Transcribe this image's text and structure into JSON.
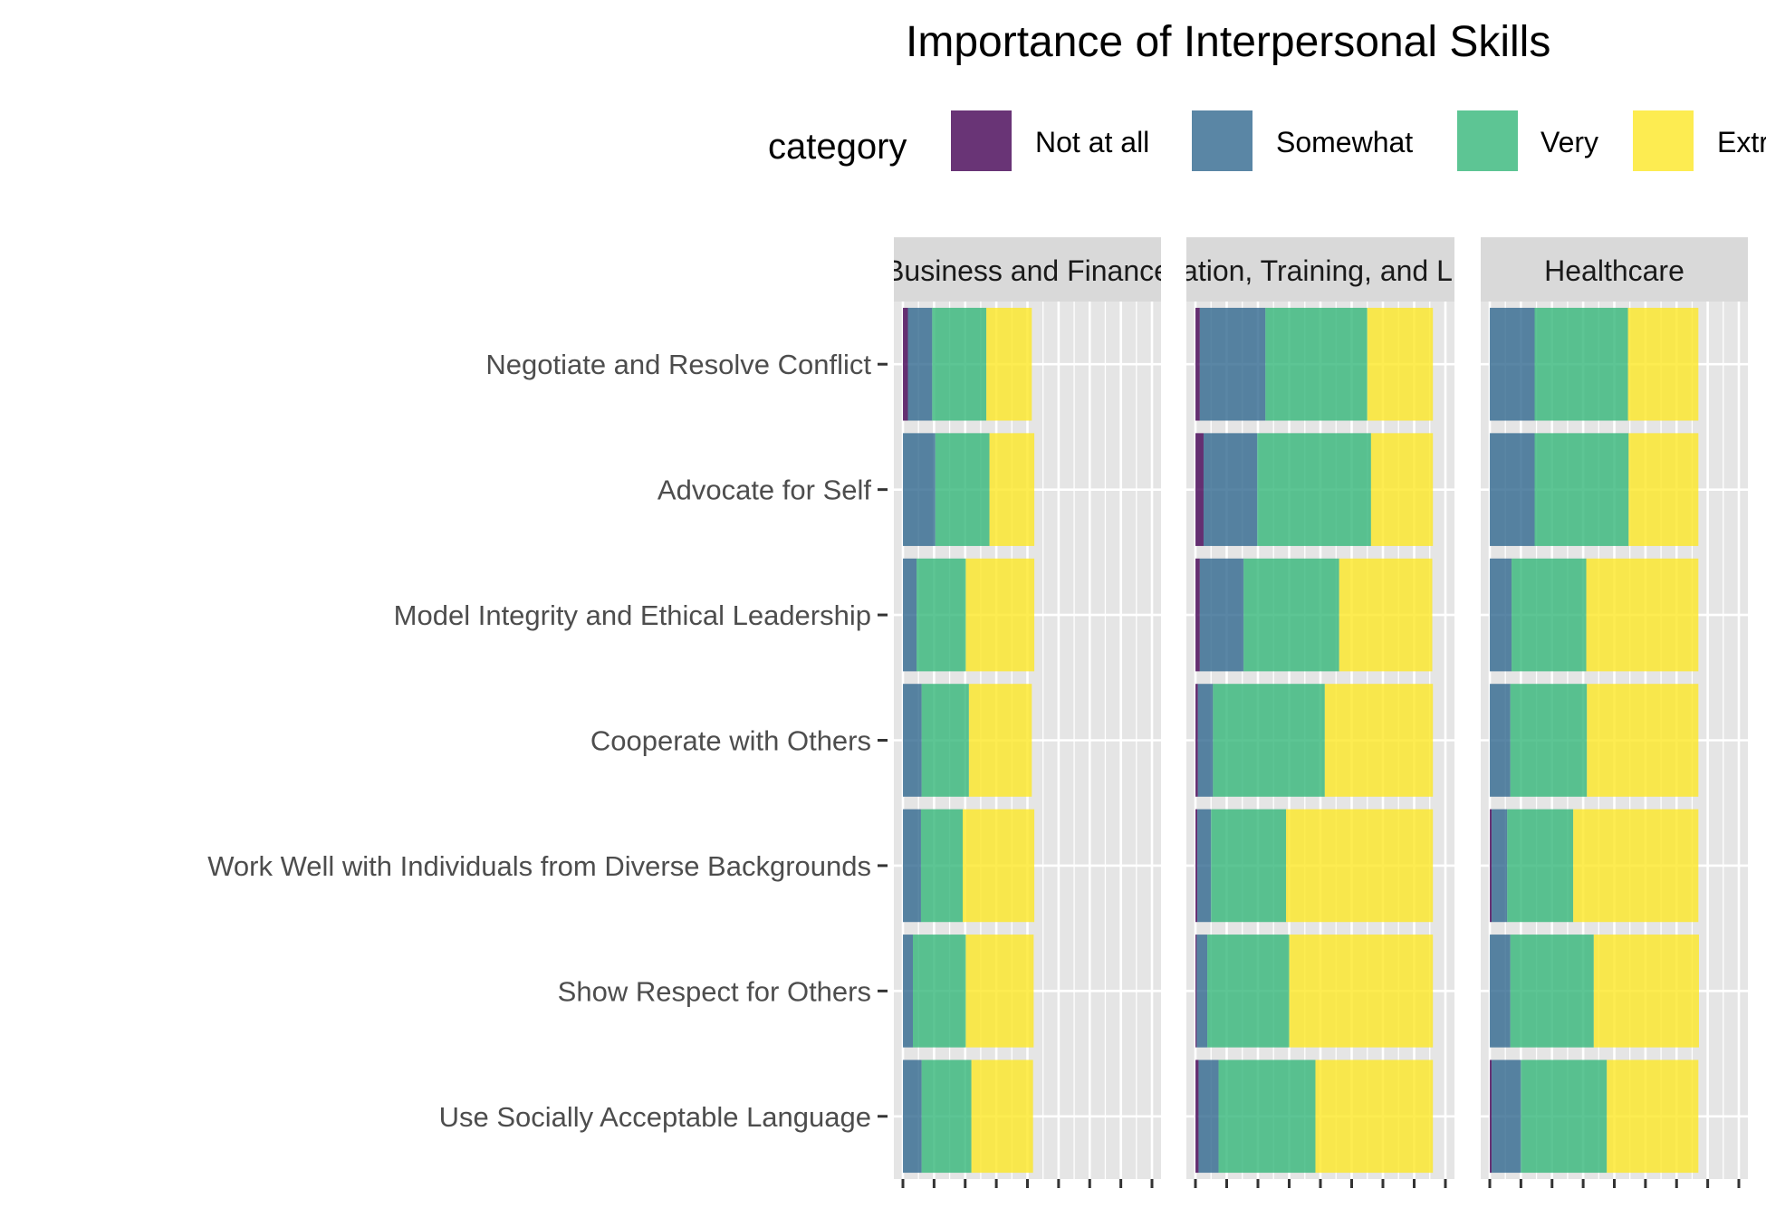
{
  "chart_data": {
    "type": "bar",
    "orientation": "horizontal",
    "stacked": true,
    "title": "Importance of Interpersonal Skills",
    "legend": {
      "title": "category",
      "position": "top",
      "entries": [
        "Not at all",
        "Somewhat",
        "Very",
        "Extremely"
      ]
    },
    "colors": {
      "Not at all": "#440154",
      "Somewhat": "#31688e",
      "Very": "#35b779",
      "Extremely": "#fde725",
      "panel_background": "#e5e5e5",
      "grid": "#ffffff",
      "strip_background": "#d9d9d9",
      "axis_text": "#4d4d4d"
    },
    "categories": [
      "Negotiate and Resolve Conflict",
      "Advocate for Self",
      "Model Integrity and Ethical Leadership",
      "Cooperate with Others",
      "Work Well with Individuals from Diverse Backgrounds",
      "Show Respect for Others",
      "Use Socially Acceptable Language"
    ],
    "series_order": [
      "Not at all",
      "Somewhat",
      "Very",
      "Extremely"
    ],
    "panels": [
      {
        "name": "Business and Finance",
        "xlim": [
          0,
          40
        ],
        "series": [
          {
            "name": "Not at all",
            "values": [
              0.8,
              0,
              0,
              0,
              0,
              0,
              0
            ]
          },
          {
            "name": "Somewhat",
            "values": [
              3.9,
              5.2,
              2.2,
              3.0,
              2.9,
              1.6,
              3.0
            ]
          },
          {
            "name": "Very",
            "values": [
              8.7,
              8.7,
              7.9,
              7.6,
              6.7,
              8.5,
              8.0
            ]
          },
          {
            "name": "Extremely",
            "values": [
              7.3,
              7.2,
              11.0,
              10.1,
              11.5,
              10.9,
              9.9
            ]
          }
        ]
      },
      {
        "name": "Education, Training, and Library",
        "xlim": [
          0,
          40
        ],
        "series": [
          {
            "name": "Not at all",
            "values": [
              0.7,
              1.3,
              0.7,
              0.4,
              0.3,
              0.2,
              0.5
            ]
          },
          {
            "name": "Somewhat",
            "values": [
              10.5,
              8.6,
              7.0,
              2.4,
              2.2,
              1.7,
              3.2
            ]
          },
          {
            "name": "Very",
            "values": [
              16.3,
              18.2,
              15.3,
              17.9,
              12.0,
              13.1,
              15.5
            ]
          },
          {
            "name": "Extremely",
            "values": [
              10.5,
              9.9,
              14.9,
              17.3,
              23.5,
              23.0,
              18.8
            ]
          }
        ]
      },
      {
        "name": "Healthcare",
        "xlim": [
          0,
          40
        ],
        "series": [
          {
            "name": "Not at all",
            "values": [
              0,
              0,
              0,
              0,
              0.3,
              0,
              0.3
            ]
          },
          {
            "name": "Somewhat",
            "values": [
              7.2,
              7.2,
              3.5,
              3.3,
              2.5,
              3.3,
              4.7
            ]
          },
          {
            "name": "Very",
            "values": [
              15.0,
              15.1,
              12.0,
              12.3,
              10.6,
              13.4,
              13.8
            ]
          },
          {
            "name": "Extremely",
            "values": [
              11.3,
              11.2,
              18.0,
              17.9,
              20.1,
              16.9,
              14.7
            ]
          }
        ]
      }
    ],
    "grid": true
  }
}
